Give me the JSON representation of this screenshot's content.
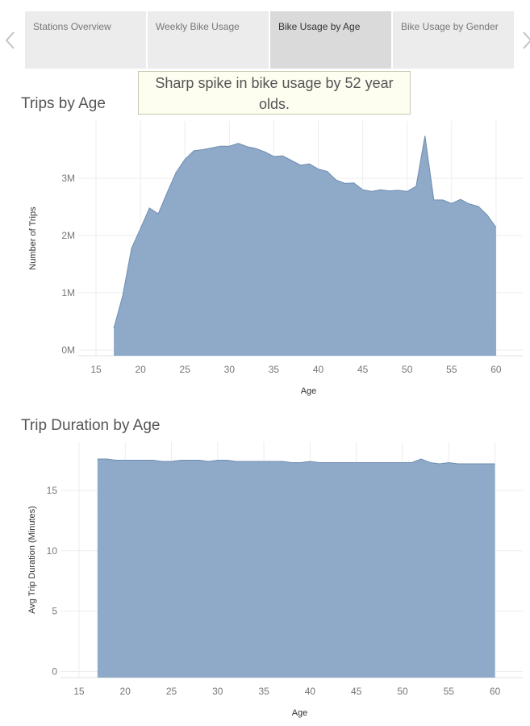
{
  "tabs": [
    {
      "label": "Stations Overview",
      "active": false
    },
    {
      "label": "Weekly Bike Usage",
      "active": false
    },
    {
      "label": "Bike Usage by Age",
      "active": true
    },
    {
      "label": "Bike Usage by Gender",
      "active": false
    }
  ],
  "icons": {
    "prev": "chevron-left-icon",
    "next": "chevron-right-icon"
  },
  "caption": "Sharp spike in bike usage by 52 year olds.",
  "colors": {
    "area_fill": "#8eaac8",
    "area_line": "#6f8db0",
    "grid": "#ededed"
  },
  "chart_data": [
    {
      "type": "area",
      "title": "Trips by Age",
      "xlabel": "Age",
      "ylabel": "Number of Trips",
      "xlim": [
        13,
        63
      ],
      "ylim": [
        -0.1,
        4.0
      ],
      "x_ticks": [
        15,
        20,
        25,
        30,
        35,
        40,
        45,
        50,
        55,
        60
      ],
      "y_ticks": [
        {
          "value": 0,
          "label": "0M"
        },
        {
          "value": 1,
          "label": "1M"
        },
        {
          "value": 2,
          "label": "2M"
        },
        {
          "value": 3,
          "label": "3M"
        }
      ],
      "x": [
        17,
        18,
        19,
        20,
        21,
        22,
        23,
        24,
        25,
        26,
        27,
        28,
        29,
        30,
        31,
        32,
        33,
        34,
        35,
        36,
        37,
        38,
        39,
        40,
        41,
        42,
        43,
        44,
        45,
        46,
        47,
        48,
        49,
        50,
        51,
        52,
        53,
        54,
        55,
        56,
        57,
        58,
        59,
        60
      ],
      "values": [
        0.38,
        0.95,
        1.78,
        2.12,
        2.48,
        2.38,
        2.75,
        3.1,
        3.33,
        3.48,
        3.5,
        3.53,
        3.56,
        3.56,
        3.61,
        3.55,
        3.52,
        3.46,
        3.38,
        3.39,
        3.31,
        3.23,
        3.25,
        3.16,
        3.12,
        2.97,
        2.91,
        2.92,
        2.8,
        2.77,
        2.8,
        2.78,
        2.79,
        2.77,
        2.86,
        3.74,
        2.62,
        2.62,
        2.56,
        2.63,
        2.55,
        2.51,
        2.36,
        2.14
      ],
      "grid": true
    },
    {
      "type": "area",
      "title": "Trip Duration by Age",
      "xlabel": "Age",
      "ylabel": "Avg Trip Duration (Minutes)",
      "xlim": [
        13,
        63
      ],
      "ylim": [
        -0.5,
        19.0
      ],
      "x_ticks": [
        15,
        20,
        25,
        30,
        35,
        40,
        45,
        50,
        55,
        60
      ],
      "y_ticks": [
        {
          "value": 0,
          "label": "0"
        },
        {
          "value": 5,
          "label": "5"
        },
        {
          "value": 10,
          "label": "10"
        },
        {
          "value": 15,
          "label": "15"
        }
      ],
      "x": [
        17,
        18,
        19,
        20,
        21,
        22,
        23,
        24,
        25,
        26,
        27,
        28,
        29,
        30,
        31,
        32,
        33,
        34,
        35,
        36,
        37,
        38,
        39,
        40,
        41,
        42,
        43,
        44,
        45,
        46,
        47,
        48,
        49,
        50,
        51,
        52,
        53,
        54,
        55,
        56,
        57,
        58,
        59,
        60
      ],
      "values": [
        17.6,
        17.6,
        17.5,
        17.5,
        17.5,
        17.5,
        17.5,
        17.4,
        17.4,
        17.5,
        17.5,
        17.5,
        17.4,
        17.5,
        17.5,
        17.4,
        17.4,
        17.4,
        17.4,
        17.4,
        17.4,
        17.3,
        17.3,
        17.4,
        17.3,
        17.3,
        17.3,
        17.3,
        17.3,
        17.3,
        17.3,
        17.3,
        17.3,
        17.3,
        17.3,
        17.6,
        17.3,
        17.2,
        17.3,
        17.2,
        17.2,
        17.2,
        17.2,
        17.2
      ],
      "grid": true
    }
  ]
}
